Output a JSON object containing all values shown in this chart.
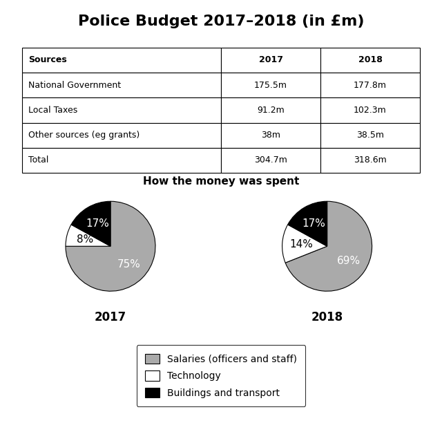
{
  "title": "Police Budget 2017–2018 (in £m)",
  "table": {
    "headers": [
      "Sources",
      "2017",
      "2018"
    ],
    "rows": [
      [
        "National Government",
        "175.5m",
        "177.8m"
      ],
      [
        "Local Taxes",
        "91.2m",
        "102.3m"
      ],
      [
        "Other sources (eg grants)",
        "38m",
        "38.5m"
      ],
      [
        "Total",
        "304.7m",
        "318.6m"
      ]
    ]
  },
  "pie_title": "How the money was spent",
  "pie_2017": {
    "label": "2017",
    "values": [
      75,
      8,
      17
    ],
    "labels": [
      "75%",
      "8%",
      "17%"
    ],
    "colors": [
      "#aaaaaa",
      "#ffffff",
      "#000000"
    ],
    "startangle": 90
  },
  "pie_2018": {
    "label": "2018",
    "values": [
      69,
      14,
      17
    ],
    "labels": [
      "69%",
      "14%",
      "17%"
    ],
    "colors": [
      "#aaaaaa",
      "#ffffff",
      "#000000"
    ],
    "startangle": 90
  },
  "legend_labels": [
    "Salaries (officers and staff)",
    "Technology",
    "Buildings and transport"
  ],
  "legend_colors": [
    "#aaaaaa",
    "#ffffff",
    "#000000"
  ],
  "background_color": "#ffffff",
  "title_fontsize": 16,
  "pie_title_fontsize": 11,
  "pie_label_fontsize": 11,
  "pie_year_fontsize": 12,
  "table_fontsize": 9,
  "legend_fontsize": 10
}
